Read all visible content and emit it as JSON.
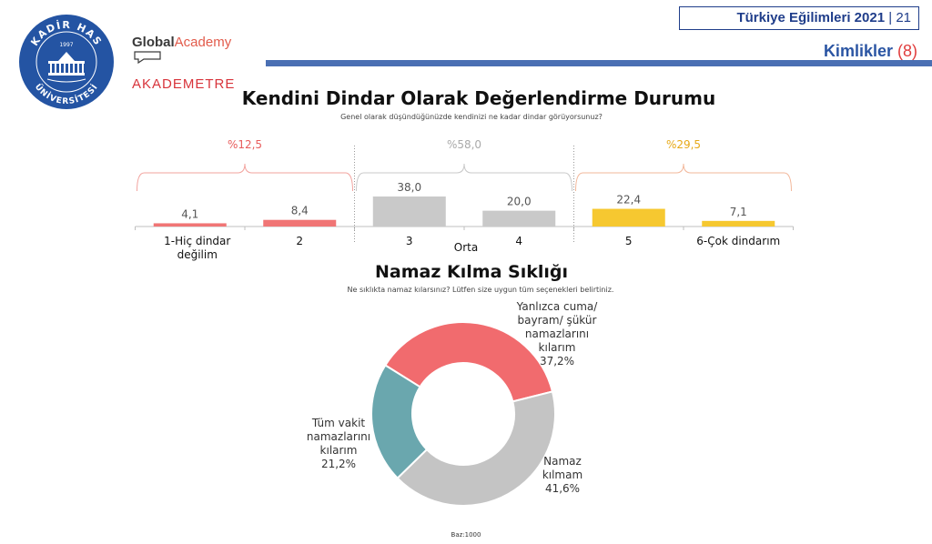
{
  "header": {
    "report_title": "Türkiye Eğilimleri 2021",
    "page_number": "21",
    "section": "Kimlikler",
    "section_number": "(8)"
  },
  "logos": {
    "university_top": "KADİR HAS",
    "university_year": "1997",
    "university_bottom": "ÜNİVERSİTESİ",
    "global_a": "Global",
    "global_b": "Academy",
    "akademetre": "AKADEMETRE"
  },
  "chart1": {
    "title": "Kendini Dindar Olarak Değerlendirme Durumu",
    "subtitle": "Genel olarak düşündüğünüzde kendinizi ne kadar dindar görüyorsunuz?",
    "middle_label": "Orta"
  },
  "chart2": {
    "title": "Namaz Kılma Sıklığı",
    "subtitle": "Ne sıklıkta namaz kılarsınız? Lütfen size uygun tüm seçenekleri belirtiniz."
  },
  "footer": {
    "base": "Baz:1000"
  },
  "chart_data": [
    {
      "type": "bar",
      "title": "Kendini Dindar Olarak Değerlendirme Durumu",
      "categories": [
        "1-Hiç dindar değilim",
        "2",
        "3",
        "4",
        "5",
        "6-Çok dindarım"
      ],
      "values": [
        4.1,
        8.4,
        38.0,
        20.0,
        22.4,
        7.1
      ],
      "value_labels": [
        "4,1",
        "8,4",
        "38,0",
        "20,0",
        "22,4",
        "7,1"
      ],
      "colors": [
        "#f07575",
        "#f07575",
        "#c9c9c9",
        "#c9c9c9",
        "#f6c830",
        "#f6c830"
      ],
      "groups": [
        {
          "label": "%12,5",
          "value": 12.5,
          "from": 0,
          "to": 1,
          "color": "#e85c5c",
          "bracket_color": "#f2a39e"
        },
        {
          "label": "%58,0",
          "value": 58.0,
          "from": 2,
          "to": 3,
          "color": "#aaaaaa",
          "bracket_color": "#c8c8c8"
        },
        {
          "label": "%29,5",
          "value": 29.5,
          "from": 4,
          "to": 5,
          "color": "#e7a918",
          "bracket_color": "#f2b79a"
        }
      ],
      "ylim": [
        0,
        38.0
      ]
    },
    {
      "type": "pie",
      "title": "Namaz Kılma Sıklığı",
      "donut": true,
      "slices": [
        {
          "label_lines": [
            "Yanlızca cuma/",
            "bayram/ şükür",
            "namazlarını",
            "kılarım"
          ],
          "value": 37.2,
          "value_label": "37,2%",
          "color": "#f16b6e"
        },
        {
          "label_lines": [
            "Namaz",
            "kılmam"
          ],
          "value": 41.6,
          "value_label": "41,6%",
          "color": "#c4c4c4"
        },
        {
          "label_lines": [
            "Tüm vakit",
            "namazlarını",
            "kılarım"
          ],
          "value": 21.2,
          "value_label": "21,2%",
          "color": "#6aa7ae"
        }
      ]
    }
  ]
}
